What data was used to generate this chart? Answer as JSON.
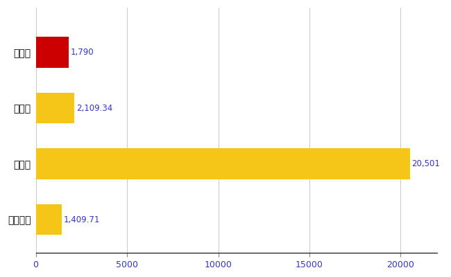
{
  "categories": [
    "佐渡市",
    "県平均",
    "県最大",
    "全国平均"
  ],
  "values": [
    1790,
    2109.34,
    20501,
    1409.71
  ],
  "labels": [
    "1,790",
    "2,109.34",
    "20,501",
    "1,409.71"
  ],
  "bar_colors": [
    "#cc0000",
    "#f5c518",
    "#f5c518",
    "#f5c518"
  ],
  "xlim": [
    0,
    22000
  ],
  "xticks": [
    0,
    5000,
    10000,
    15000,
    20000
  ],
  "background_color": "#ffffff",
  "grid_color": "#cccccc",
  "label_color": "#3333cc",
  "label_fontsize": 8.5,
  "ytick_fontsize": 10,
  "xtick_fontsize": 9,
  "bar_height": 0.55
}
